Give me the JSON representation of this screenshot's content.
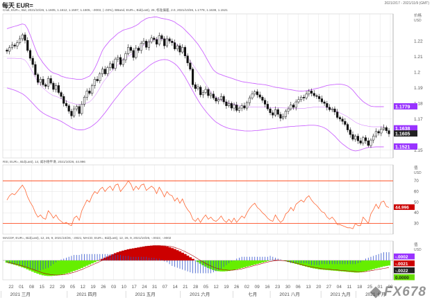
{
  "header": {
    "title": "每天 EUR=",
    "date_range": "2021/2/17 - 2021/11/9 (GMT)"
  },
  "labels": {
    "price_panel": "Cndl, EUR=, Bid, 2021/10/26, 1.1605, 1.1612, 1.1597, 1.1605, -.0003, (-.03%), BBand, EUR=, Bid(Last), 26, 标准偏差, 2.0, 2021/10/26, 1.1779, 1.1638, 1.1521",
    "rsi_panel": "RSI, EUR=, Bid(Last), 14, 威尔德平滑, 2021/10/26, 44.996",
    "macd_panel": "MACDF, EUR=, Bid(Last), 12, 26, 9, 2021/10/26, -.0021, MACD, EUR=, Bid(Last), 12, 26, 9, 2021/10/26, -.0022, -.0002"
  },
  "watermark": "FX678",
  "colors": {
    "candle": "#111111",
    "bband": "#cc66ff",
    "rsi": "#ff6633",
    "rsi_bands": "#ff3300",
    "macd_pos": "#cc0000",
    "macd_neg": "#66ee00",
    "grid": "#dddddd",
    "axis_text": "#555555",
    "badge_purple": "#9933ff",
    "badge_dark": "#222222",
    "badge_red": "#cc0000",
    "badge_green": "#66dd00"
  },
  "chart_data": [
    {
      "type": "candlestick",
      "name": "EUR=",
      "ylabel": "价格\nUSD",
      "ylim": [
        1.145,
        1.2375
      ],
      "yticks": [
        1.15,
        1.17,
        1.18,
        1.19,
        1.2,
        1.21,
        1.22
      ],
      "ytick_labels": [
        "1.15",
        "1.17",
        "1.18",
        "1.19",
        "1.2",
        "1.21",
        "1.22"
      ],
      "x_day_ticks": [
        "22",
        "01",
        "08",
        "15",
        "22",
        "29",
        "05",
        "12",
        "19",
        "26",
        "03",
        "10",
        "17",
        "24",
        "31",
        "07",
        "14",
        "21",
        "28",
        "05",
        "12",
        "19",
        "26",
        "02",
        "09",
        "16",
        "23",
        "30",
        "06",
        "13",
        "20",
        "27",
        "04",
        "11",
        "18",
        "25",
        "01",
        "08"
      ],
      "x_month_labels": [
        "2021 三月",
        "2021 四月",
        "2021 五月",
        "2021 六月",
        "七月",
        "2021 八月",
        "2021 九月",
        "2021 十月"
      ],
      "close": [
        1.2135,
        1.2158,
        1.2175,
        1.2168,
        1.219,
        1.2215,
        1.224,
        1.2205,
        1.214,
        1.209,
        1.205,
        1.1985,
        1.1935,
        1.1955,
        1.192,
        1.191,
        1.196,
        1.193,
        1.189,
        1.1915,
        1.187,
        1.1845,
        1.18,
        1.1785,
        1.175,
        1.172,
        1.1765,
        1.178,
        1.1735,
        1.1795,
        1.184,
        1.188,
        1.1865,
        1.1915,
        1.1955,
        1.1945,
        1.199,
        1.202,
        1.199,
        1.203,
        1.2055,
        1.2025,
        1.2085,
        1.2095,
        1.205,
        1.208,
        1.212,
        1.216,
        1.214,
        1.2095,
        1.2155,
        1.214,
        1.2185,
        1.22,
        1.216,
        1.2195,
        1.222,
        1.221,
        1.218,
        1.2235,
        1.2215,
        1.217,
        1.2215,
        1.22,
        1.219,
        1.215,
        1.217,
        1.213,
        1.216,
        1.2105,
        1.206,
        1.202,
        1.192,
        1.1895,
        1.1905,
        1.1855,
        1.187,
        1.189,
        1.185,
        1.186,
        1.1835,
        1.1815,
        1.1825,
        1.1845,
        1.181,
        1.1785,
        1.18,
        1.177,
        1.179,
        1.1755,
        1.177,
        1.1785,
        1.177,
        1.1805,
        1.1835,
        1.186,
        1.1875,
        1.1855,
        1.184,
        1.182,
        1.1795,
        1.1765,
        1.174,
        1.1725,
        1.176,
        1.173,
        1.1705,
        1.1715,
        1.175,
        1.1765,
        1.179,
        1.1775,
        1.181,
        1.1825,
        1.184,
        1.1835,
        1.186,
        1.188,
        1.1865,
        1.185,
        1.1845,
        1.183,
        1.181,
        1.18,
        1.1775,
        1.176,
        1.1765,
        1.1745,
        1.171,
        1.17,
        1.1685,
        1.1665,
        1.163,
        1.16,
        1.157,
        1.159,
        1.156,
        1.1545,
        1.158,
        1.156,
        1.153,
        1.1565,
        1.159,
        1.162,
        1.161,
        1.1635,
        1.1645,
        1.1625,
        1.1605
      ],
      "bband_upper": [
        1.228,
        1.2285,
        1.229,
        1.2295,
        1.23,
        1.2305,
        1.231,
        1.2305,
        1.228,
        1.224,
        1.2195,
        1.215,
        1.211,
        1.2085,
        1.206,
        1.204,
        1.202,
        1.2005,
        1.1995,
        1.199,
        1.1985,
        1.1975,
        1.197,
        1.1965,
        1.1962,
        1.196,
        1.1958,
        1.1955,
        1.1955,
        1.1955,
        1.196,
        1.1968,
        1.1975,
        1.1995,
        1.2025,
        1.206,
        1.21,
        1.214,
        1.2165,
        1.2185,
        1.2205,
        1.222,
        1.2235,
        1.225,
        1.226,
        1.227,
        1.2275,
        1.228,
        1.2285,
        1.2292,
        1.23,
        1.231,
        1.2325,
        1.2335,
        1.2345,
        1.235,
        1.2352,
        1.2355,
        1.2355,
        1.235,
        1.2346,
        1.2343,
        1.234,
        1.2336,
        1.233,
        1.2322,
        1.231,
        1.23,
        1.2288,
        1.2272,
        1.2255,
        1.2238,
        1.222,
        1.22,
        1.218,
        1.2155,
        1.213,
        1.21,
        1.207,
        1.204,
        1.2015,
        1.2,
        1.199,
        1.1985,
        1.1978,
        1.1972,
        1.1967,
        1.1962,
        1.1956,
        1.195,
        1.1945,
        1.194,
        1.1937,
        1.1935,
        1.1932,
        1.193,
        1.1928,
        1.1925,
        1.1924,
        1.1922,
        1.192,
        1.1916,
        1.1912,
        1.1908,
        1.1904,
        1.1902,
        1.1899,
        1.1896,
        1.1893,
        1.189,
        1.1888,
        1.1885,
        1.1882,
        1.188,
        1.1879,
        1.188,
        1.1882,
        1.1885,
        1.1888,
        1.1892,
        1.1896,
        1.19,
        1.1905,
        1.191,
        1.1915,
        1.1918,
        1.192,
        1.1922,
        1.1924,
        1.1924,
        1.1922,
        1.1918,
        1.1912,
        1.19,
        1.1885,
        1.1865,
        1.1845,
        1.1828,
        1.1812,
        1.18,
        1.179,
        1.1782,
        1.178,
        1.1779,
        1.1779,
        1.1779,
        1.1779
      ],
      "bband_lower": [
        1.19,
        1.1895,
        1.189,
        1.1885,
        1.1878,
        1.187,
        1.1862,
        1.185,
        1.1835,
        1.1818,
        1.18,
        1.1782,
        1.1765,
        1.175,
        1.1738,
        1.1728,
        1.172,
        1.1712,
        1.1705,
        1.17,
        1.1693,
        1.1685,
        1.1675,
        1.1665,
        1.1655,
        1.1645,
        1.1638,
        1.1632,
        1.163,
        1.163,
        1.1632,
        1.1638,
        1.1645,
        1.1655,
        1.1668,
        1.1682,
        1.17,
        1.172,
        1.174,
        1.1762,
        1.1785,
        1.1808,
        1.183,
        1.185,
        1.1872,
        1.1892,
        1.191,
        1.1925,
        1.194,
        1.1955,
        1.197,
        1.1985,
        1.2,
        1.2012,
        1.2025,
        1.204,
        1.2052,
        1.2062,
        1.207,
        1.2076,
        1.208,
        1.2082,
        1.208,
        1.2075,
        1.2066,
        1.2055,
        1.204,
        1.202,
        1.1995,
        1.197,
        1.194,
        1.191,
        1.188,
        1.185,
        1.1822,
        1.1795,
        1.1772,
        1.175,
        1.173,
        1.1712,
        1.1695,
        1.168,
        1.167,
        1.166,
        1.1652,
        1.1645,
        1.164,
        1.1636,
        1.1633,
        1.163,
        1.1628,
        1.1626,
        1.1624,
        1.1623,
        1.1623,
        1.1624,
        1.1625,
        1.1626,
        1.1628,
        1.163,
        1.1632,
        1.1634,
        1.1636,
        1.1638,
        1.164,
        1.1642,
        1.1644,
        1.1646,
        1.1648,
        1.165,
        1.1652,
        1.1652,
        1.1654,
        1.1655,
        1.1656,
        1.1657,
        1.1658,
        1.166,
        1.166,
        1.166,
        1.1658,
        1.1655,
        1.165,
        1.1643,
        1.1633,
        1.162,
        1.1605,
        1.159,
        1.1572,
        1.1555,
        1.154,
        1.1528,
        1.1515,
        1.1505,
        1.1498,
        1.1495,
        1.1497,
        1.1502,
        1.1508,
        1.1513,
        1.1517,
        1.1519,
        1.152,
        1.1521,
        1.1521,
        1.1521,
        1.1521
      ],
      "badges": [
        "1.1779",
        "1.1638",
        "1.1605",
        "1.1521"
      ]
    },
    {
      "type": "line",
      "name": "RSI",
      "ylabel": "值\nUSD",
      "ylim": [
        20,
        85
      ],
      "yticks": [
        30,
        40,
        50,
        60,
        70
      ],
      "ytick_labels": [
        "30",
        "40",
        "50",
        "60",
        "70"
      ],
      "bands": [
        30,
        70
      ],
      "values": [
        52,
        56,
        58,
        57,
        60,
        63,
        66,
        62,
        55,
        50,
        46,
        40,
        36,
        38,
        35,
        34,
        42,
        39,
        35,
        38,
        34,
        32,
        30,
        31,
        29,
        28,
        35,
        37,
        33,
        42,
        47,
        52,
        50,
        56,
        60,
        58,
        62,
        64,
        60,
        63,
        65,
        61,
        66,
        67,
        60,
        63,
        66,
        70,
        67,
        61,
        65,
        62,
        66,
        67,
        61,
        63,
        65,
        63,
        58,
        64,
        60,
        55,
        60,
        57,
        56,
        51,
        54,
        49,
        53,
        47,
        43,
        40,
        34,
        32,
        35,
        31,
        35,
        38,
        34,
        36,
        33,
        32,
        34,
        37,
        33,
        31,
        34,
        31,
        35,
        31,
        34,
        37,
        35,
        40,
        44,
        47,
        49,
        45,
        43,
        40,
        38,
        35,
        33,
        32,
        38,
        34,
        31,
        33,
        39,
        41,
        45,
        42,
        48,
        50,
        52,
        50,
        54,
        56,
        52,
        49,
        47,
        44,
        41,
        40,
        36,
        34,
        36,
        33,
        29,
        29,
        28,
        27,
        26,
        26,
        25,
        30,
        28,
        28,
        36,
        33,
        30,
        39,
        43,
        48,
        44,
        50,
        51,
        46,
        45
      ],
      "badge": "44.996"
    },
    {
      "type": "bar",
      "name": "MACD",
      "ylabel": "值\nUSD",
      "ylim": [
        -0.0085,
        0.0085
      ],
      "yticks": [
        0.0
      ],
      "ytick_labels": [
        "0.00"
      ],
      "histogram": [
        -0.001,
        -0.0013,
        -0.0016,
        -0.0019,
        -0.0022,
        -0.0026,
        -0.003,
        -0.0034,
        -0.0039,
        -0.0044,
        -0.0049,
        -0.0054,
        -0.0058,
        -0.0062,
        -0.0065,
        -0.0067,
        -0.0068,
        -0.0068,
        -0.0067,
        -0.0066,
        -0.0064,
        -0.0062,
        -0.006,
        -0.0057,
        -0.0054,
        -0.005,
        -0.0046,
        -0.0042,
        -0.0038,
        -0.0033,
        -0.0028,
        -0.0023,
        -0.0018,
        -0.0013,
        -0.0008,
        -0.0003,
        0.0002,
        0.0007,
        0.0012,
        0.0017,
        0.0022,
        0.0027,
        0.0032,
        0.0036,
        0.004,
        0.0043,
        0.0046,
        0.0049,
        0.0051,
        0.0053,
        0.0055,
        0.0057,
        0.0059,
        0.0061,
        0.0063,
        0.0064,
        0.0065,
        0.0066,
        0.0066,
        0.0066,
        0.0065,
        0.0063,
        0.0061,
        0.0058,
        0.0054,
        0.005,
        0.0045,
        0.004,
        0.0034,
        0.0028,
        0.0021,
        0.0014,
        0.0007,
        0.0,
        -0.0007,
        -0.0014,
        -0.0021,
        -0.0027,
        -0.0033,
        -0.0038,
        -0.0042,
        -0.0045,
        -0.0047,
        -0.0048,
        -0.0048,
        -0.0047,
        -0.0046,
        -0.0044,
        -0.0042,
        -0.0039,
        -0.0036,
        -0.0033,
        -0.003,
        -0.0027,
        -0.0024,
        -0.0021,
        -0.0018,
        -0.0015,
        -0.0012,
        -0.0009,
        -0.0006,
        -0.0003,
        0.0,
        0.0001,
        0.0002,
        0.0002,
        0.0001,
        -0.0001,
        -0.0003,
        -0.0006,
        -0.0009,
        -0.0012,
        -0.0015,
        -0.0018,
        -0.0021,
        -0.0024,
        -0.0027,
        -0.003,
        -0.0033,
        -0.0035,
        -0.0037,
        -0.0039,
        -0.004,
        -0.0041,
        -0.0042,
        -0.0043,
        -0.0044,
        -0.0045,
        -0.0046,
        -0.0047,
        -0.0048,
        -0.0049,
        -0.005,
        -0.0051,
        -0.0052,
        -0.0053,
        -0.0053,
        -0.0052,
        -0.005,
        -0.0047,
        -0.0044,
        -0.0041,
        -0.0038,
        -0.0035,
        -0.0032,
        -0.0029,
        -0.0026,
        -0.0024,
        -0.0022
      ],
      "signal": [
        -0.0008,
        -0.001,
        -0.0012,
        -0.0015,
        -0.0018,
        -0.0021,
        -0.0024,
        -0.0027,
        -0.0031,
        -0.0035,
        -0.0039,
        -0.0043,
        -0.0047,
        -0.0051,
        -0.0055,
        -0.0058,
        -0.006,
        -0.0062,
        -0.0063,
        -0.0064,
        -0.0064,
        -0.0063,
        -0.0062,
        -0.006,
        -0.0058,
        -0.0055,
        -0.0052,
        -0.0048,
        -0.0044,
        -0.004,
        -0.0035,
        -0.003,
        -0.0025,
        -0.002,
        -0.0015,
        -0.001,
        -0.0005,
        0.0,
        0.0005,
        0.001,
        0.0015,
        0.002,
        0.0025,
        0.003,
        0.0034,
        0.0038,
        0.0041,
        0.0044,
        0.0047,
        0.0049,
        0.0051,
        0.0053,
        0.0055,
        0.0057,
        0.0059,
        0.0061,
        0.0062,
        0.0063,
        0.0064,
        0.0064,
        0.0064,
        0.0064,
        0.0063,
        0.0062,
        0.006,
        0.0057,
        0.0053,
        0.0049,
        0.0044,
        0.0039,
        0.0033,
        0.0027,
        0.0021,
        0.0014,
        0.0007,
        0.0,
        -0.0007,
        -0.0013,
        -0.0019,
        -0.0024,
        -0.0029,
        -0.0033,
        -0.0036,
        -0.0039,
        -0.0041,
        -0.0042,
        -0.0043,
        -0.0043,
        -0.0042,
        -0.0041,
        -0.0039,
        -0.0037,
        -0.0034,
        -0.0031,
        -0.0028,
        -0.0025,
        -0.0022,
        -0.0019,
        -0.0016,
        -0.0013,
        -0.001,
        -0.0007,
        -0.0005,
        -0.0003,
        -0.0001,
        0.0,
        0.0,
        -0.0001,
        -0.0002,
        -0.0004,
        -0.0006,
        -0.0009,
        -0.0012,
        -0.0015,
        -0.0018,
        -0.0021,
        -0.0024,
        -0.0026,
        -0.0028,
        -0.003,
        -0.0032,
        -0.0034,
        -0.0036,
        -0.0037,
        -0.0038,
        -0.0039,
        -0.004,
        -0.0041,
        -0.0042,
        -0.0043,
        -0.0044,
        -0.0045,
        -0.0046,
        -0.0047,
        -0.0048,
        -0.0049,
        -0.005,
        -0.005,
        -0.005,
        -0.0049,
        -0.0047,
        -0.0045,
        -0.0043,
        -0.0041,
        -0.0039,
        -0.0037,
        -0.0035,
        -0.0033,
        -0.0031
      ],
      "badges": [
        "-.0002",
        "-.0021",
        "-.0022",
        "0.0000"
      ]
    }
  ]
}
